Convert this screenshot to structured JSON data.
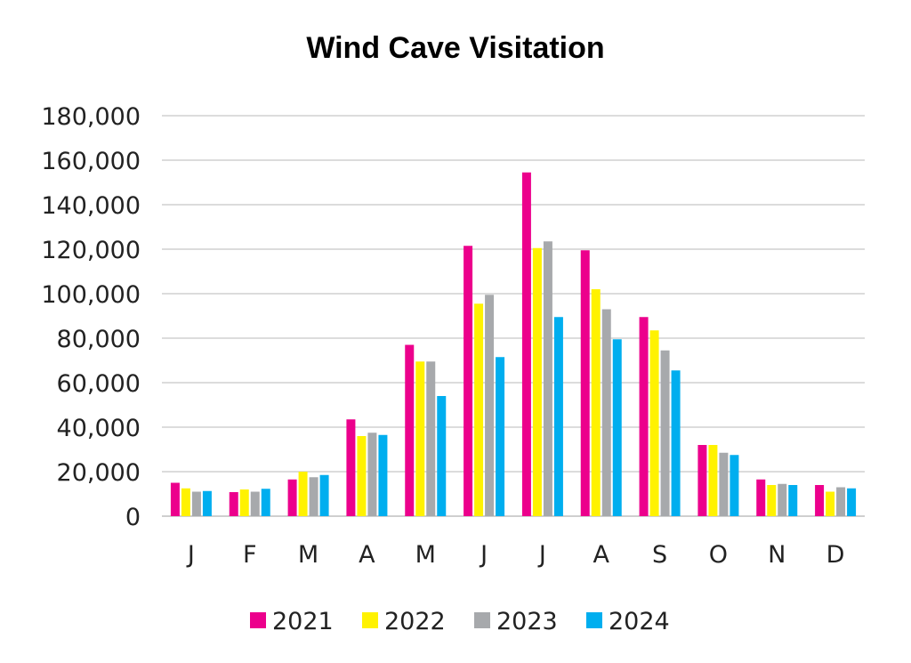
{
  "chart_data": {
    "type": "bar",
    "title": "Wind Cave Visitation",
    "xlabel": "",
    "ylabel": "",
    "ylim": [
      0,
      180000
    ],
    "yticks": [
      0,
      20000,
      40000,
      60000,
      80000,
      100000,
      120000,
      140000,
      160000,
      180000
    ],
    "ytick_labels": [
      "0",
      "20,000",
      "40,000",
      "60,000",
      "80,000",
      "100,000",
      "120,000",
      "140,000",
      "160,000",
      "180,000"
    ],
    "grid": true,
    "legend_position": "bottom",
    "categories": [
      "J",
      "F",
      "M",
      "A",
      "M",
      "J",
      "J",
      "A",
      "S",
      "O",
      "N",
      "D"
    ],
    "series": [
      {
        "name": "2021",
        "color": "#EC008C",
        "values": [
          15000,
          10800,
          16500,
          43500,
          77000,
          121500,
          154500,
          119500,
          89500,
          32000,
          16500,
          14000
        ]
      },
      {
        "name": "2022",
        "color": "#FFF200",
        "values": [
          12500,
          12000,
          20000,
          36000,
          69500,
          95500,
          120500,
          102000,
          83500,
          32000,
          14000,
          11000
        ]
      },
      {
        "name": "2023",
        "color": "#A7A9AC",
        "values": [
          11000,
          11000,
          17500,
          37500,
          69500,
          99500,
          123500,
          93000,
          74500,
          28500,
          14500,
          13000
        ]
      },
      {
        "name": "2024",
        "color": "#00AEEF",
        "values": [
          11300,
          12300,
          18500,
          36500,
          54000,
          71500,
          89500,
          79500,
          65500,
          27500,
          14000,
          12500
        ]
      }
    ]
  }
}
